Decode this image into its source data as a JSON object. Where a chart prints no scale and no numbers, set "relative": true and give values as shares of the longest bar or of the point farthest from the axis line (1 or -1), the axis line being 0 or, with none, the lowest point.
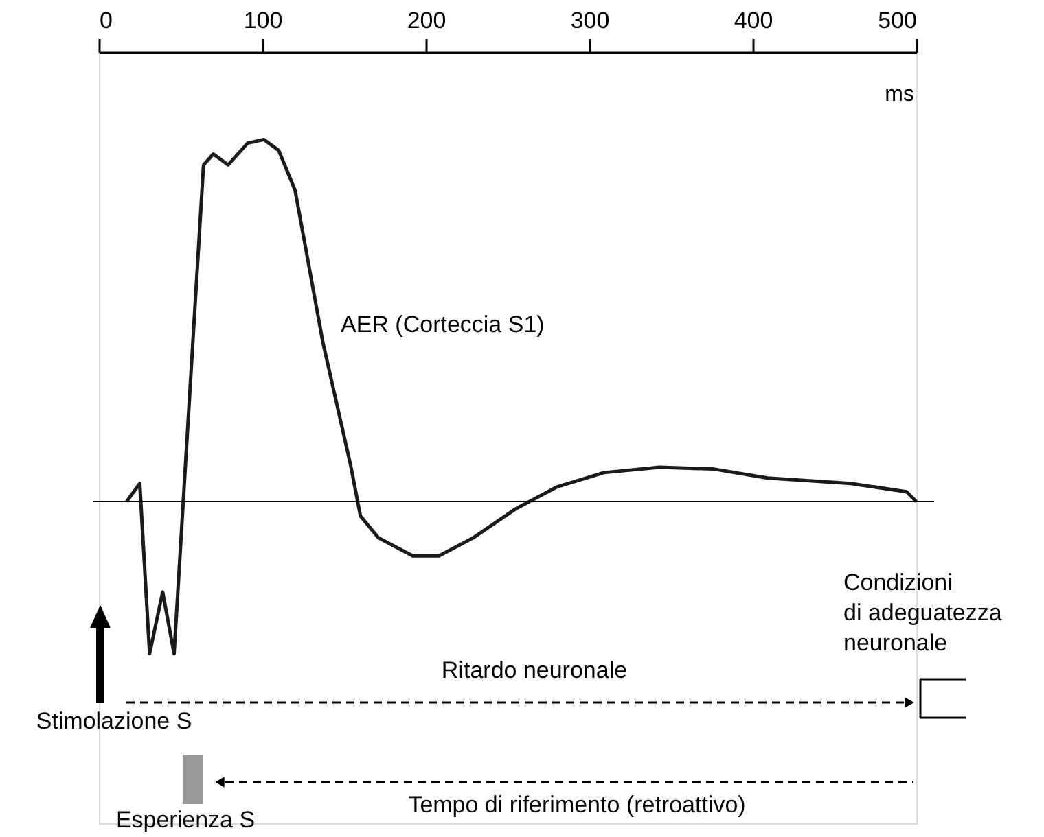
{
  "chart_data": {
    "type": "line",
    "relative": true,
    "xlabel": "ms",
    "xlim": [
      0,
      500
    ],
    "xticks": [
      0,
      100,
      200,
      300,
      400,
      500
    ],
    "grid": false,
    "marker": "none",
    "line_style": "solid",
    "series": [
      {
        "color": "#1a1a1a",
        "x": [
          17,
          25,
          31,
          39,
          46,
          64,
          70,
          79,
          91,
          101,
          110,
          120,
          137,
          154,
          160,
          171,
          192,
          208,
          229,
          255,
          280,
          309,
          343,
          376,
          409,
          460,
          494,
          500
        ],
        "values": [
          0,
          0.05,
          -0.42,
          -0.25,
          -0.42,
          0.93,
          0.96,
          0.93,
          0.99,
          1.0,
          0.97,
          0.86,
          0.44,
          0.1,
          -0.04,
          -0.1,
          -0.15,
          -0.15,
          -0.1,
          -0.02,
          0.04,
          0.08,
          0.095,
          0.09,
          0.065,
          0.05,
          0.027,
          0
        ]
      }
    ],
    "annotations": [
      "AER (Corteccia S1)",
      "Condizioni\ndi adeguatezza\nneuronale",
      "Ritardo neuronale",
      "Stimolazione S",
      "Esperienza S",
      "Tempo di riferimento (retroattivo)"
    ]
  }
}
